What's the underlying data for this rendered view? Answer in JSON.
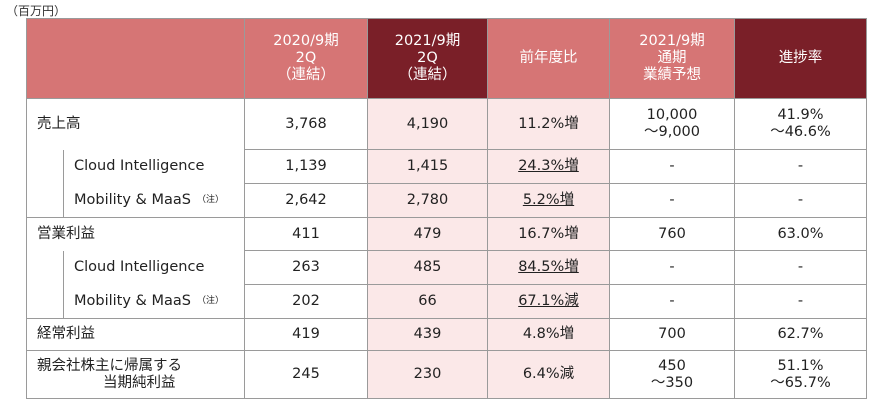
{
  "unit_label": "（百万円）",
  "headers": {
    "c1": [
      "2020/9期",
      "2Q",
      "（連結）"
    ],
    "c2": [
      "2021/9期",
      "2Q",
      "（連結）"
    ],
    "c3": [
      "前年度比"
    ],
    "c4": [
      "2021/9期",
      "通期",
      "業績予想"
    ],
    "c5": [
      "進捗率"
    ]
  },
  "rows": [
    {
      "label": "売上高",
      "v1": "3,768",
      "v2": "4,190",
      "v3": "11.2%増",
      "v4": [
        "10,000",
        "～9,000"
      ],
      "v5": [
        "41.9%",
        "～46.6%"
      ]
    },
    {
      "label": "Cloud Intelligence",
      "v1": "1,139",
      "v2": "1,415",
      "v3": "24.3%増",
      "v4": "-",
      "v5": "-"
    },
    {
      "label": "Mobility & MaaS",
      "note": "（注）",
      "v1": "2,642",
      "v2": "2,780",
      "v3": "5.2%増",
      "v4": "-",
      "v5": "-"
    },
    {
      "label": "営業利益",
      "v1": "411",
      "v2": "479",
      "v3": "16.7%増",
      "v4": "760",
      "v5": "63.0%"
    },
    {
      "label": "Cloud Intelligence",
      "v1": "263",
      "v2": "485",
      "v3": "84.5%増",
      "v4": "-",
      "v5": "-"
    },
    {
      "label": "Mobility & MaaS",
      "note": "（注）",
      "v1": "202",
      "v2": "66",
      "v3": "67.1%減",
      "v4": "-",
      "v5": "-"
    },
    {
      "label": "経常利益",
      "v1": "419",
      "v2": "439",
      "v3": "4.8%増",
      "v4": "700",
      "v5": "62.7%"
    },
    {
      "label": [
        "親会社株主に帰属する",
        "当期純利益"
      ],
      "v1": "245",
      "v2": "230",
      "v3": "6.4%減",
      "v4": [
        "450",
        "～350"
      ],
      "v5": [
        "51.1%",
        "～65.7%"
      ]
    }
  ]
}
